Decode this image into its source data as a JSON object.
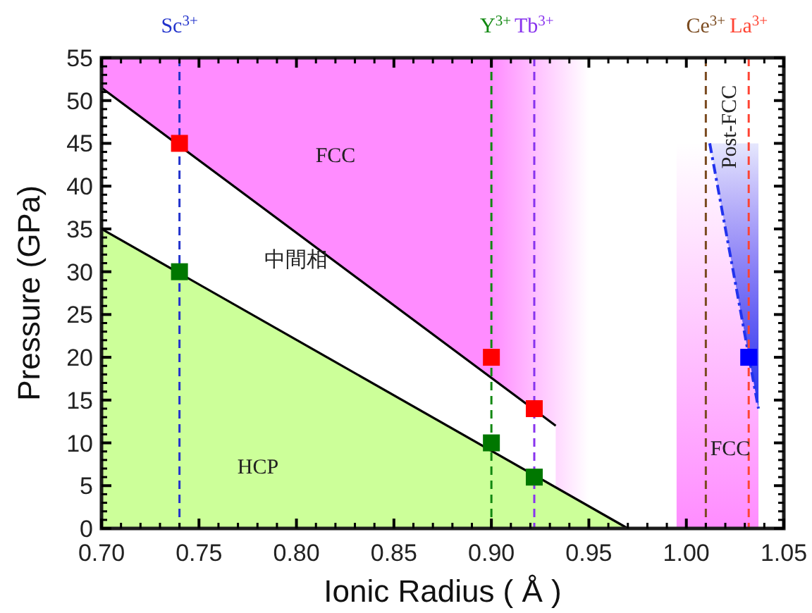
{
  "chart_data": {
    "type": "line",
    "xlabel": "Ionic Radius ( Å )",
    "ylabel": "Pressure (GPa)",
    "xlim": [
      0.7,
      1.05
    ],
    "ylim": [
      0,
      55
    ],
    "xticks": [
      {
        "value": 0.7,
        "label": "0.70"
      },
      {
        "value": 0.75,
        "label": "0.75"
      },
      {
        "value": 0.8,
        "label": "0.80"
      },
      {
        "value": 0.85,
        "label": "0.85"
      },
      {
        "value": 0.9,
        "label": "0.90"
      },
      {
        "value": 0.95,
        "label": "0.95"
      },
      {
        "value": 1.0,
        "label": "1.00"
      },
      {
        "value": 1.05,
        "label": "1.05"
      }
    ],
    "yticks": [
      0,
      5,
      10,
      15,
      20,
      25,
      30,
      35,
      40,
      45,
      50,
      55
    ],
    "series": [
      {
        "type": "area",
        "color": "#ff8cff",
        "x": [
          0.7,
          0.95
        ],
        "values": [
          55,
          55
        ]
      },
      {
        "type": "area",
        "color": "#ffffff",
        "x": [
          0.7,
          0.933
        ],
        "values": [
          51.5,
          12
        ]
      },
      {
        "type": "area",
        "color": "#ccff99",
        "x": [
          0.7,
          0.97
        ],
        "values": [
          35,
          0
        ]
      },
      {
        "type": "line",
        "color": "#2233ee",
        "x": [
          1.012,
          1.037
        ],
        "values": [
          45,
          14
        ],
        "lower": [
          45,
          14
        ],
        "upper": [
          45,
          45
        ],
        "line_style": "dashdot"
      },
      {
        "type": "scatter",
        "color": "#ff0000",
        "x": [
          0.74,
          0.9,
          0.922
        ],
        "values": [
          45,
          20,
          14
        ],
        "marker": "square"
      },
      {
        "type": "scatter",
        "color": "#007700",
        "x": [
          0.74,
          0.9,
          0.922
        ],
        "values": [
          30,
          10,
          6
        ],
        "marker": "square"
      },
      {
        "type": "scatter",
        "color": "#0000ff",
        "x": [
          1.032
        ],
        "values": [
          20
        ],
        "marker": "square"
      }
    ],
    "bands": [
      {
        "axis": "x",
        "from": 0.995,
        "to": 1.037,
        "color": "#ff8cff"
      }
    ],
    "ref_lines": [
      {
        "axis": "x",
        "value": 0.74,
        "label": "Sc$^{3+}$",
        "color": "#2233cc",
        "line_style": "dashed"
      },
      {
        "axis": "x",
        "value": 0.9,
        "label": "Y$^{3+}$",
        "color": "#118811",
        "line_style": "dashed"
      },
      {
        "axis": "x",
        "value": 0.922,
        "label": "Tb$^{3+}$",
        "color": "#8833ee",
        "line_style": "dashed"
      },
      {
        "axis": "x",
        "value": 1.01,
        "label": "Ce$^{3+}$",
        "color": "#7a4a1f",
        "line_style": "dashed"
      },
      {
        "axis": "x",
        "value": 1.032,
        "label": "La$^{3+}$",
        "color": "#ff4433",
        "line_style": "dashed"
      }
    ],
    "annotations": [
      "FCC",
      "中間相",
      "HCP",
      "FCC",
      "Post-FCC"
    ]
  }
}
